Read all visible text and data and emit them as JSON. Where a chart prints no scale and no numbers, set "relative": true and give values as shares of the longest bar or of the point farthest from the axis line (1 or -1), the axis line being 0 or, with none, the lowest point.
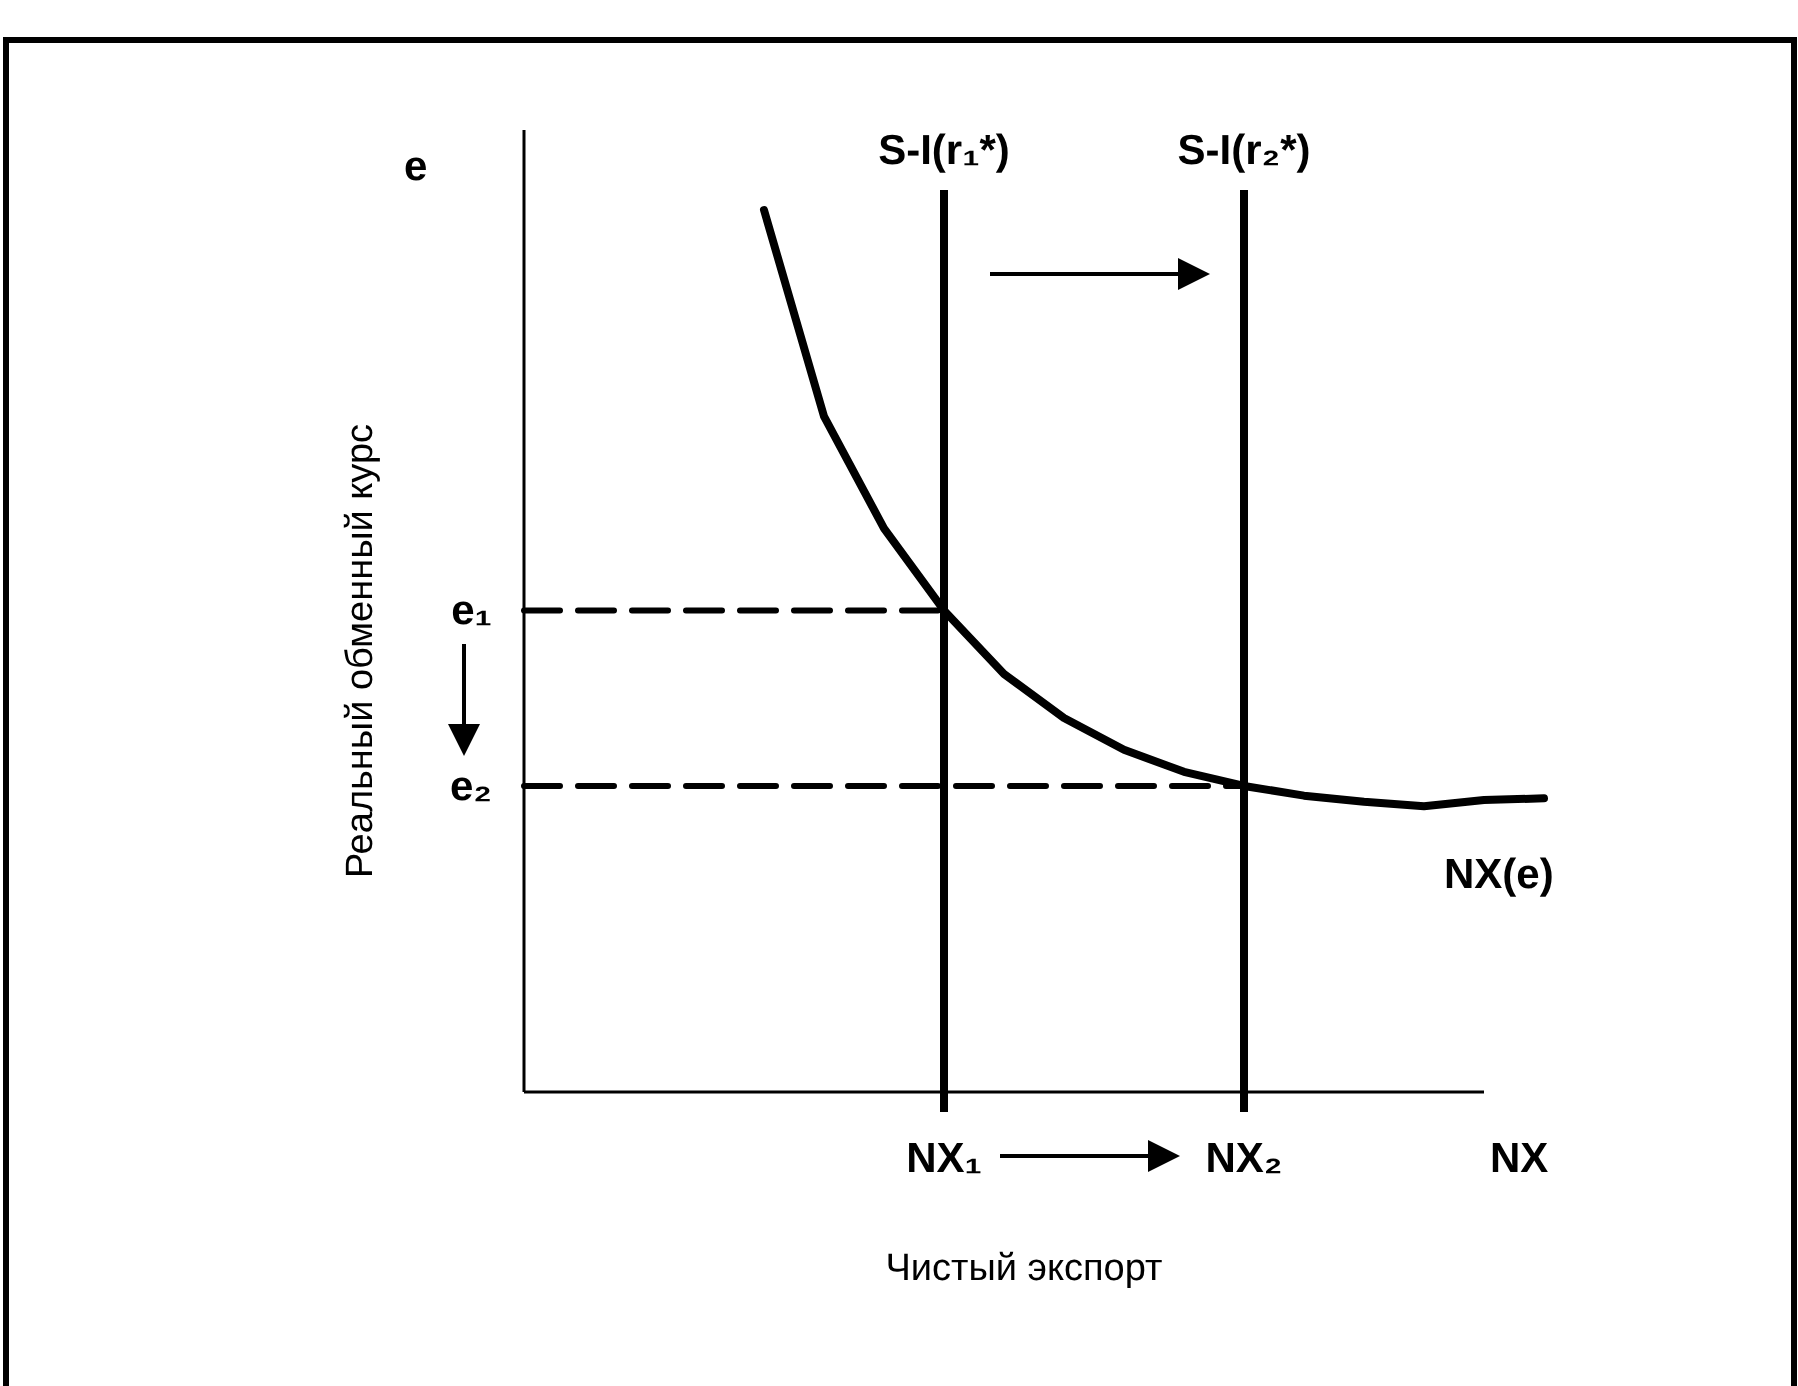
{
  "chart_data": {
    "type": "line",
    "relative": true,
    "xlabel": "Чистый экспорт",
    "ylabel": "Реальный обменный курс",
    "categories": [
      null,
      null,
      null,
      null,
      null,
      null,
      null,
      "NX₁",
      null,
      null,
      null,
      null,
      "NX₂",
      null,
      null,
      null,
      null,
      null
    ],
    "series": [
      {
        "name": "NX(e)",
        "color": "#000000",
        "values": [
          null,
          null,
          null,
          null,
          1,
          0.766,
          0.639,
          0.546,
          0.474,
          0.424,
          0.388,
          0.363,
          0.347,
          0.336,
          0.329,
          0.324,
          0.331,
          0.333
        ]
      },
      {
        "color": "#000000",
        "line_style": "dashed",
        "values": [
          0.546,
          0.546,
          0.546,
          0.546,
          0.546,
          0.546,
          0.546,
          0.546,
          null,
          null,
          null,
          null,
          null,
          null,
          null,
          null,
          null,
          null
        ]
      },
      {
        "color": "#000000",
        "line_style": "dashed",
        "values": [
          0.347,
          0.347,
          0.347,
          0.347,
          0.347,
          0.347,
          0.347,
          0.347,
          0.347,
          0.347,
          0.347,
          0.347,
          0.347,
          null,
          null,
          null,
          null,
          null
        ]
      }
    ],
    "ref_lines": [
      {
        "axis": "x",
        "value": "NX₁",
        "label": "S-I(r₁*)",
        "color": "#000000"
      },
      {
        "axis": "x",
        "value": "NX₂",
        "label": "S-I(r₂*)",
        "color": "#000000"
      }
    ],
    "annotations": [
      "e",
      "NX",
      "e₁",
      "e₂"
    ],
    "legend": false
  }
}
